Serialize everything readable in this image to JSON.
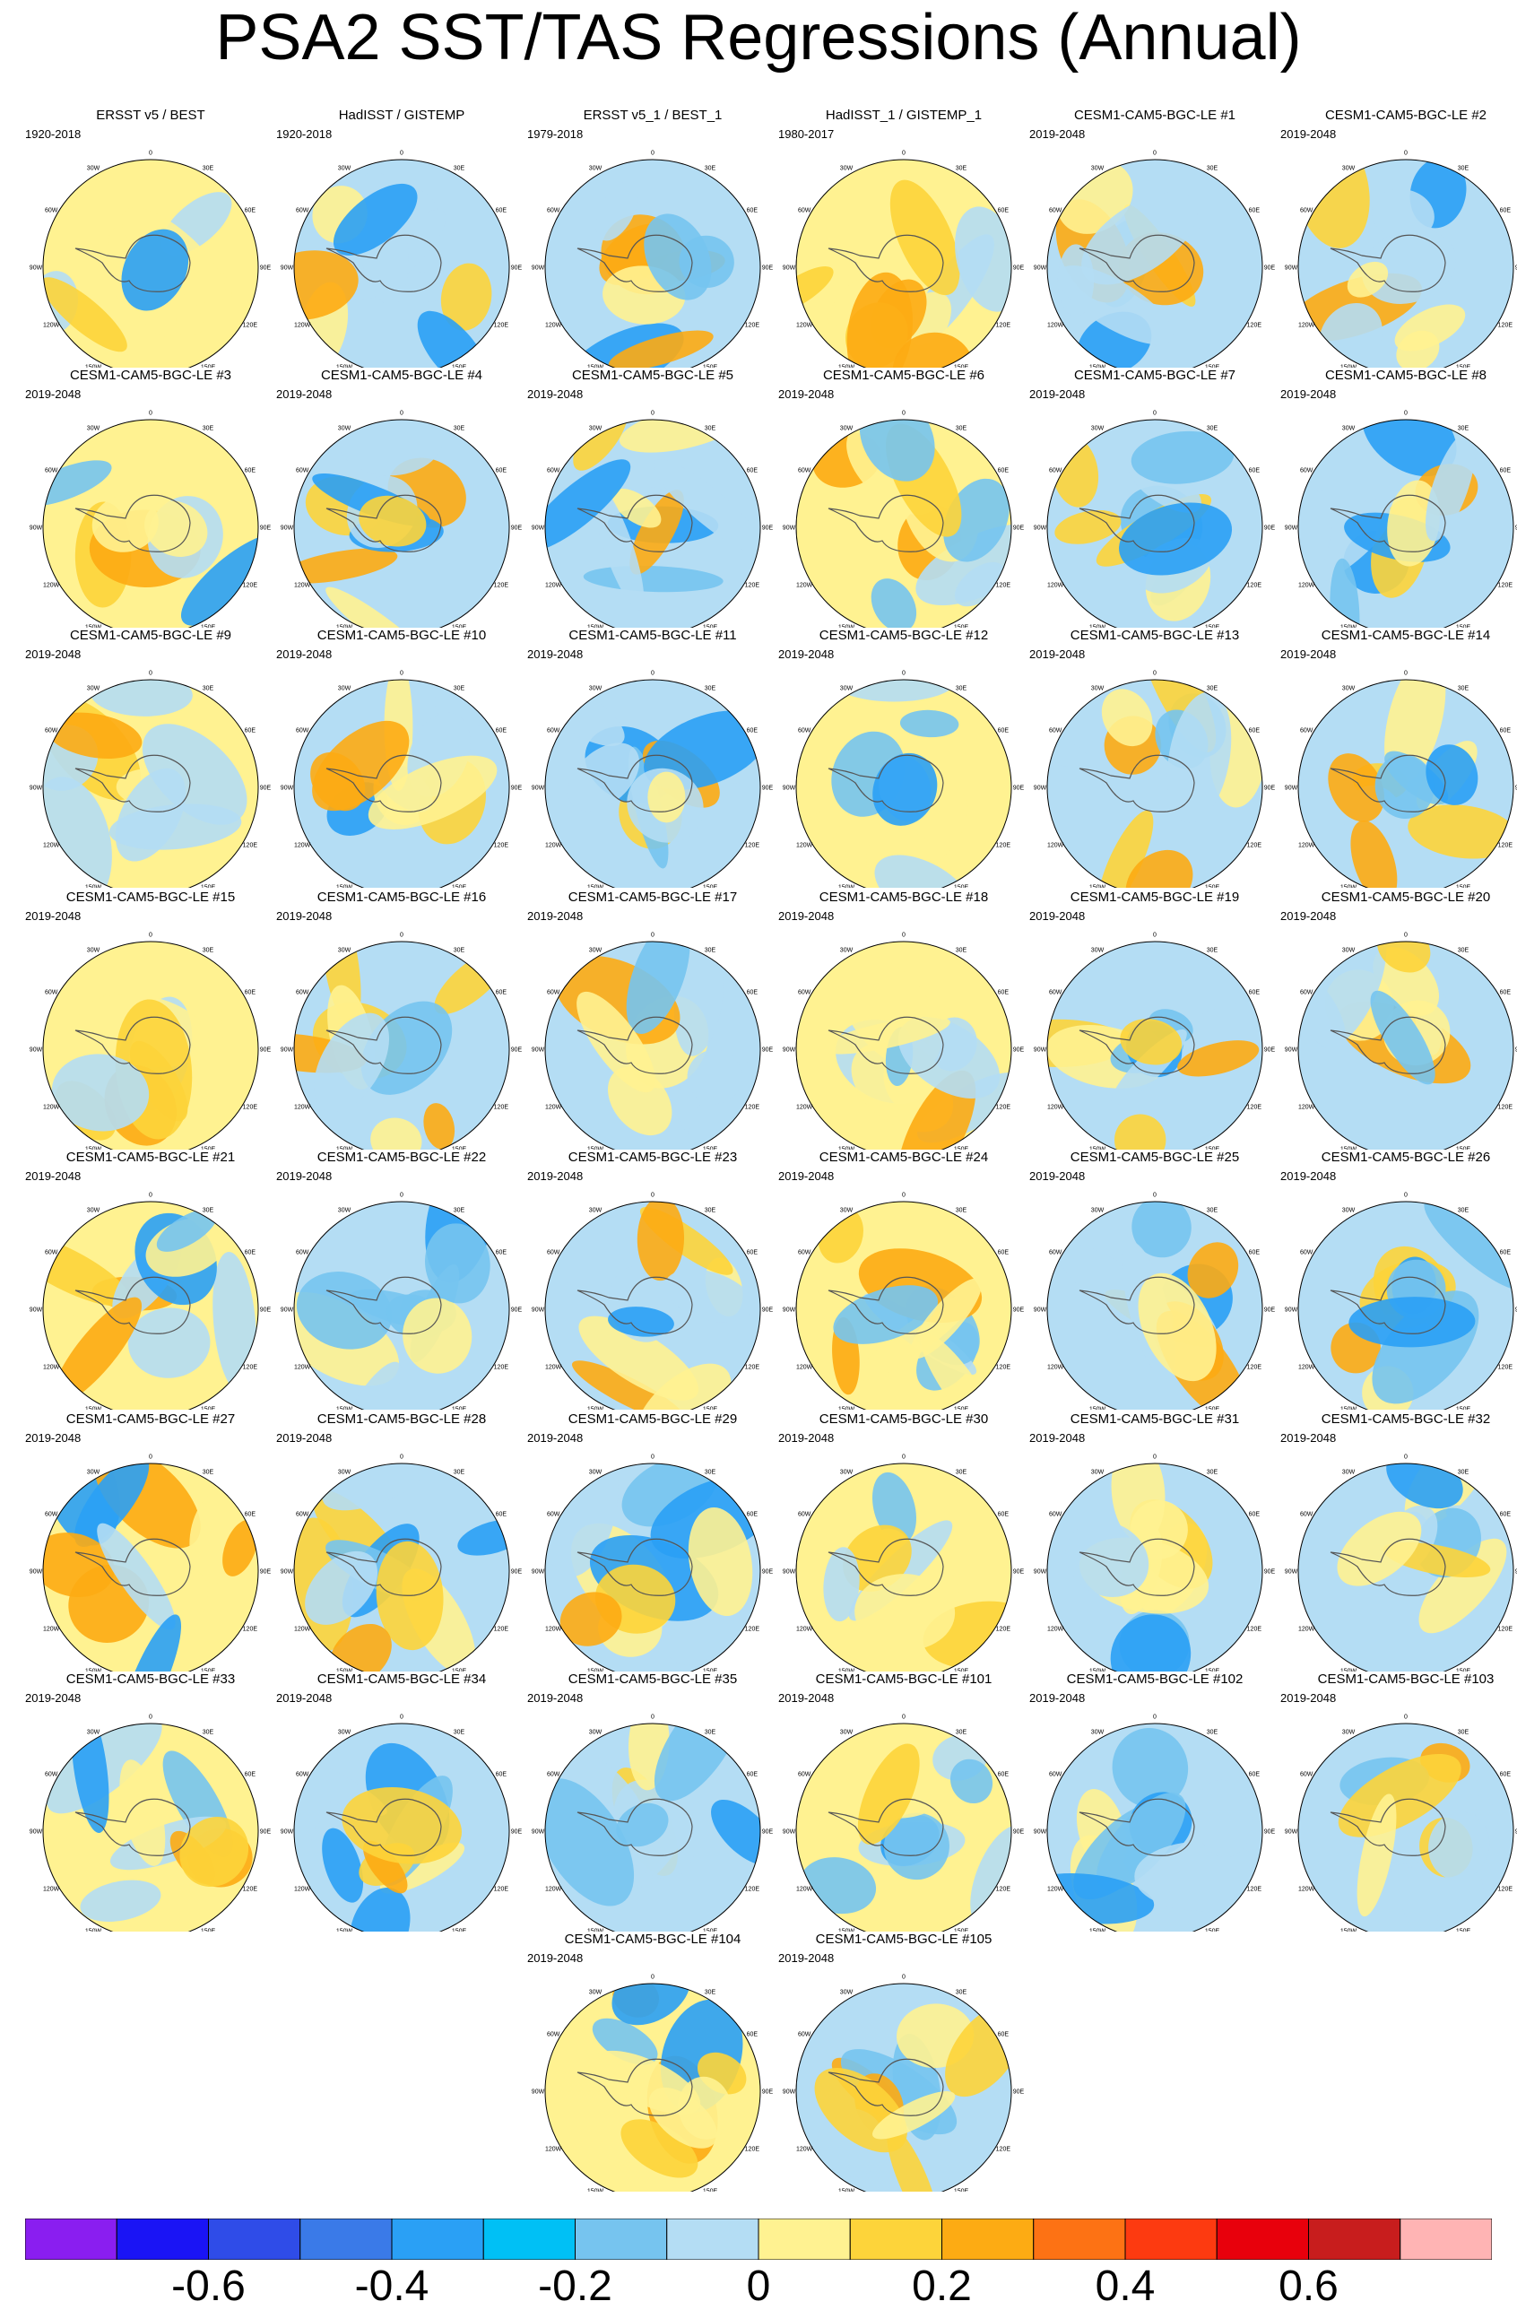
{
  "title": "PSA2 SST/TAS Regressions (Annual)",
  "longitude_labels": [
    "0",
    "30E",
    "60E",
    "90E",
    "120E",
    "150E",
    "180",
    "150W",
    "120W",
    "90W",
    "60W",
    "30W"
  ],
  "panels": [
    {
      "title": "ERSST v5 / BEST",
      "period": "1920-2018"
    },
    {
      "title": "HadISST / GISTEMP",
      "period": "1920-2018"
    },
    {
      "title": "ERSST v5_1 / BEST_1",
      "period": "1979-2018"
    },
    {
      "title": "HadISST_1 / GISTEMP_1",
      "period": "1980-2017"
    },
    {
      "title": "CESM1-CAM5-BGC-LE #1",
      "period": "2019-2048"
    },
    {
      "title": "CESM1-CAM5-BGC-LE #2",
      "period": "2019-2048"
    },
    {
      "title": "CESM1-CAM5-BGC-LE #3",
      "period": "2019-2048"
    },
    {
      "title": "CESM1-CAM5-BGC-LE #4",
      "period": "2019-2048"
    },
    {
      "title": "CESM1-CAM5-BGC-LE #5",
      "period": "2019-2048"
    },
    {
      "title": "CESM1-CAM5-BGC-LE #6",
      "period": "2019-2048"
    },
    {
      "title": "CESM1-CAM5-BGC-LE #7",
      "period": "2019-2048"
    },
    {
      "title": "CESM1-CAM5-BGC-LE #8",
      "period": "2019-2048"
    },
    {
      "title": "CESM1-CAM5-BGC-LE #9",
      "period": "2019-2048"
    },
    {
      "title": "CESM1-CAM5-BGC-LE #10",
      "period": "2019-2048"
    },
    {
      "title": "CESM1-CAM5-BGC-LE #11",
      "period": "2019-2048"
    },
    {
      "title": "CESM1-CAM5-BGC-LE #12",
      "period": "2019-2048"
    },
    {
      "title": "CESM1-CAM5-BGC-LE #13",
      "period": "2019-2048"
    },
    {
      "title": "CESM1-CAM5-BGC-LE #14",
      "period": "2019-2048"
    },
    {
      "title": "CESM1-CAM5-BGC-LE #15",
      "period": "2019-2048"
    },
    {
      "title": "CESM1-CAM5-BGC-LE #16",
      "period": "2019-2048"
    },
    {
      "title": "CESM1-CAM5-BGC-LE #17",
      "period": "2019-2048"
    },
    {
      "title": "CESM1-CAM5-BGC-LE #18",
      "period": "2019-2048"
    },
    {
      "title": "CESM1-CAM5-BGC-LE #19",
      "period": "2019-2048"
    },
    {
      "title": "CESM1-CAM5-BGC-LE #20",
      "period": "2019-2048"
    },
    {
      "title": "CESM1-CAM5-BGC-LE #21",
      "period": "2019-2048"
    },
    {
      "title": "CESM1-CAM5-BGC-LE #22",
      "period": "2019-2048"
    },
    {
      "title": "CESM1-CAM5-BGC-LE #23",
      "period": "2019-2048"
    },
    {
      "title": "CESM1-CAM5-BGC-LE #24",
      "period": "2019-2048"
    },
    {
      "title": "CESM1-CAM5-BGC-LE #25",
      "period": "2019-2048"
    },
    {
      "title": "CESM1-CAM5-BGC-LE #26",
      "period": "2019-2048"
    },
    {
      "title": "CESM1-CAM5-BGC-LE #27",
      "period": "2019-2048"
    },
    {
      "title": "CESM1-CAM5-BGC-LE #28",
      "period": "2019-2048"
    },
    {
      "title": "CESM1-CAM5-BGC-LE #29",
      "period": "2019-2048"
    },
    {
      "title": "CESM1-CAM5-BGC-LE #30",
      "period": "2019-2048"
    },
    {
      "title": "CESM1-CAM5-BGC-LE #31",
      "period": "2019-2048"
    },
    {
      "title": "CESM1-CAM5-BGC-LE #32",
      "period": "2019-2048"
    },
    {
      "title": "CESM1-CAM5-BGC-LE #33",
      "period": "2019-2048"
    },
    {
      "title": "CESM1-CAM5-BGC-LE #34",
      "period": "2019-2048"
    },
    {
      "title": "CESM1-CAM5-BGC-LE #35",
      "period": "2019-2048"
    },
    {
      "title": "CESM1-CAM5-BGC-LE #101",
      "period": "2019-2048"
    },
    {
      "title": "CESM1-CAM5-BGC-LE #102",
      "period": "2019-2048"
    },
    {
      "title": "CESM1-CAM5-BGC-LE #103",
      "period": "2019-2048"
    },
    {
      "title": "CESM1-CAM5-BGC-LE #104",
      "period": "2019-2048"
    },
    {
      "title": "CESM1-CAM5-BGC-LE #105",
      "period": "2019-2048"
    }
  ],
  "colorbar": {
    "colors": [
      "#8a1ef0",
      "#1a14f5",
      "#2f4ce8",
      "#3a7ae8",
      "#2aa0f5",
      "#00c0f5",
      "#76c4ef",
      "#b4ddf4",
      "#fff291",
      "#fdd43a",
      "#fdab13",
      "#fd7214",
      "#fd3a10",
      "#e8000c",
      "#c81d1d",
      "#ffb4b4"
    ],
    "labels": [
      "-0.6",
      "-0.4",
      "-0.2",
      "0",
      "0.2",
      "0.4",
      "0.6"
    ],
    "label_boundaries": [
      2,
      4,
      6,
      8,
      10,
      12,
      14
    ]
  }
}
